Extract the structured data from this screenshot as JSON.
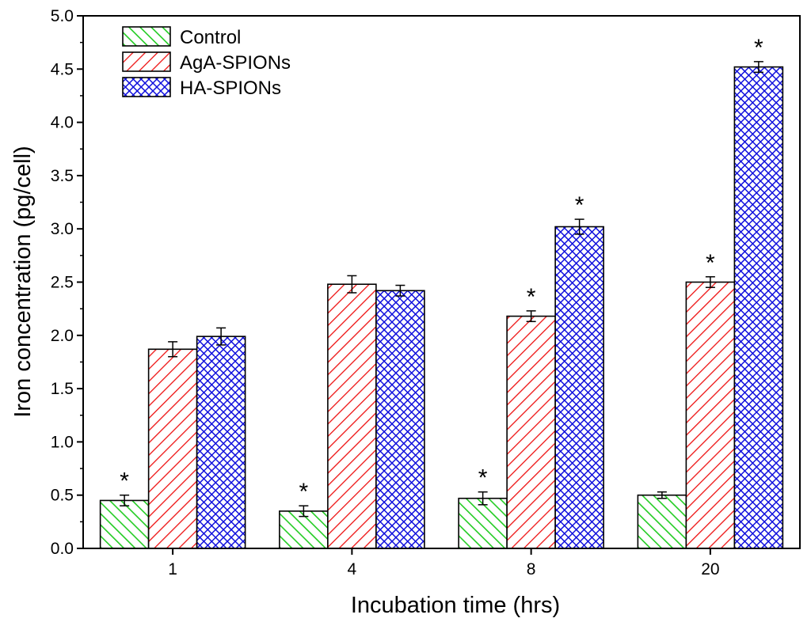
{
  "chart_data": {
    "type": "bar",
    "title": "",
    "xlabel": "Incubation time (hrs)",
    "ylabel": "Iron concentration (pg/cell)",
    "ylim": [
      0,
      5.0
    ],
    "yticks": [
      "0.0",
      "0.5",
      "1.0",
      "1.5",
      "2.0",
      "2.5",
      "3.0",
      "3.5",
      "4.0",
      "4.5",
      "5.0"
    ],
    "categories": [
      "1",
      "4",
      "8",
      "20"
    ],
    "legend_position": "top-left",
    "significance_marker": "*",
    "series": [
      {
        "name": "Control",
        "color": "#22cc22",
        "pattern": "diagonal",
        "values": [
          0.45,
          0.35,
          0.47,
          0.5
        ],
        "errors": [
          0.05,
          0.05,
          0.06,
          0.03
        ],
        "significant": [
          true,
          true,
          true,
          false
        ]
      },
      {
        "name": "AgA-SPIONs",
        "color": "#ee1111",
        "pattern": "diagonal",
        "values": [
          1.87,
          2.48,
          2.18,
          2.5
        ],
        "errors": [
          0.07,
          0.08,
          0.05,
          0.05
        ],
        "significant": [
          false,
          false,
          true,
          true
        ]
      },
      {
        "name": "HA-SPIONs",
        "color": "#1111dd",
        "pattern": "crosshatch",
        "values": [
          1.99,
          2.42,
          3.02,
          4.52
        ],
        "errors": [
          0.08,
          0.05,
          0.07,
          0.05
        ],
        "significant": [
          false,
          false,
          true,
          true
        ]
      }
    ]
  }
}
